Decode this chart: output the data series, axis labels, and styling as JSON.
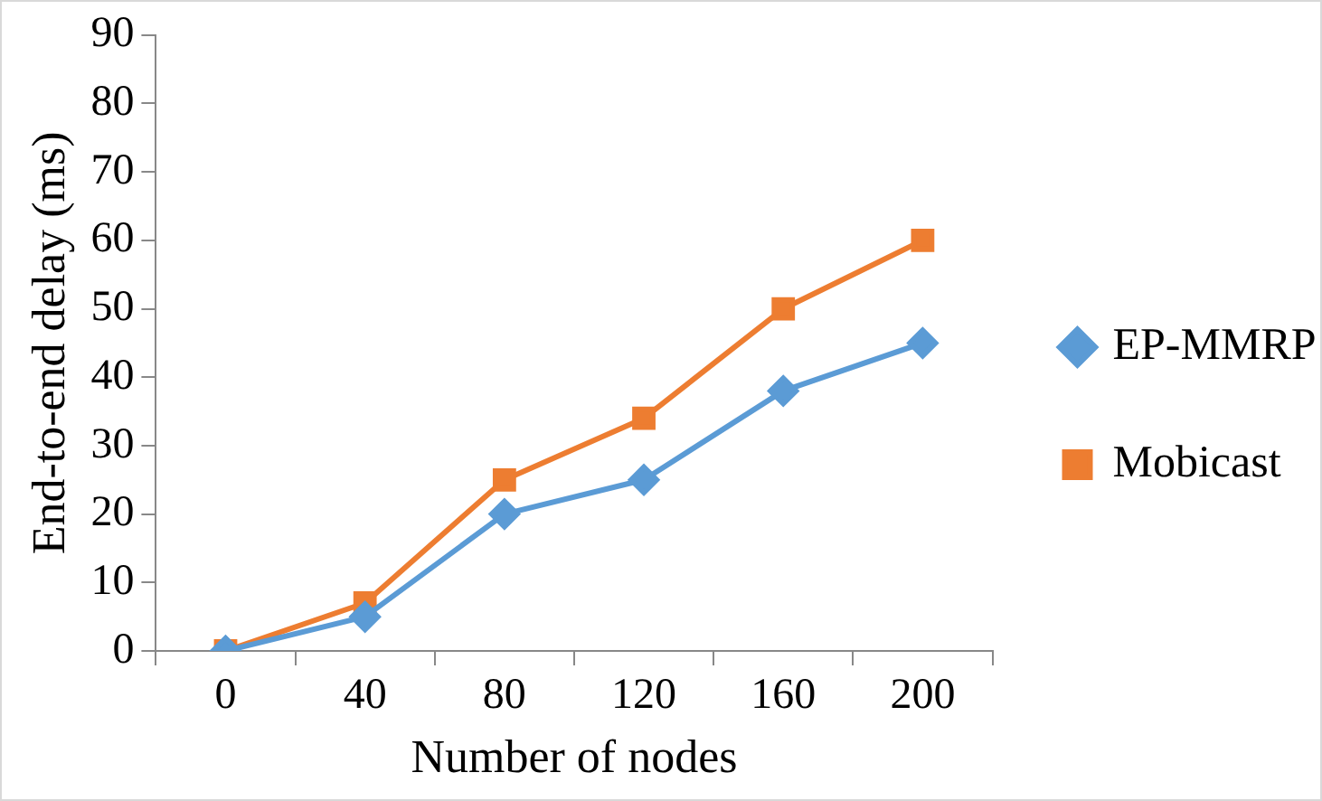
{
  "chart_data": {
    "type": "line",
    "xlabel": "Number of nodes",
    "ylabel": "End-to-end delay (ms)",
    "categories": [
      "0",
      "40",
      "80",
      "120",
      "160",
      "200"
    ],
    "series": [
      {
        "name": "EP-MMRP",
        "color": "#5b9bd5",
        "marker": "diamond",
        "values": [
          0,
          5,
          20,
          25,
          38,
          45
        ]
      },
      {
        "name": "Mobicast",
        "color": "#ed7d31",
        "marker": "square",
        "values": [
          0,
          7,
          25,
          34,
          50,
          60
        ]
      }
    ],
    "ylim": [
      0,
      90
    ],
    "yticks": [
      0,
      10,
      20,
      30,
      40,
      50,
      60,
      70,
      80,
      90
    ],
    "grid": false,
    "legend": "right",
    "line_style": "solid"
  }
}
